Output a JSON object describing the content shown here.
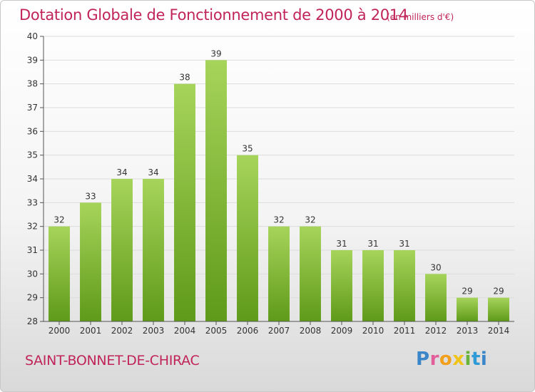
{
  "header": {
    "title": "Dotation Globale de Fonctionnement de 2000 à 2014",
    "unit": "(en milliers d'€)"
  },
  "footer": {
    "commune": "SAINT-BONNET-DE-CHIRAC",
    "logo_text": "Proxiti",
    "logo_colors": [
      "#3a86c8",
      "#e35d9b",
      "#f2a01b",
      "#f0c419",
      "#6ab33a",
      "#2e9bd6"
    ]
  },
  "colors": {
    "title": "#c0245a",
    "bar_light": "#a6d45a",
    "bar_dark": "#5f9a1a",
    "grid": "#dcdcdc",
    "axis": "#555555",
    "text": "#333333"
  },
  "chart_data": {
    "type": "bar",
    "title": "Dotation Globale de Fonctionnement de 2000 à 2014",
    "subtitle": "(en milliers d'€)",
    "categories": [
      "2000",
      "2001",
      "2002",
      "2003",
      "2004",
      "2005",
      "2006",
      "2007",
      "2008",
      "2009",
      "2010",
      "2011",
      "2012",
      "2013",
      "2014"
    ],
    "values": [
      32,
      33,
      34,
      34,
      38,
      39,
      35,
      32,
      32,
      31,
      31,
      31,
      30,
      29,
      29
    ],
    "data_labels": [
      "32",
      "33",
      "34",
      "34",
      "38",
      "39",
      "35",
      "32",
      "32",
      "31",
      "31",
      "31",
      "30",
      "29",
      "29"
    ],
    "ylim": [
      28,
      40
    ],
    "yticks": [
      28,
      29,
      30,
      31,
      32,
      33,
      34,
      35,
      36,
      37,
      38,
      39,
      40
    ],
    "grid": true,
    "legend": "none"
  }
}
